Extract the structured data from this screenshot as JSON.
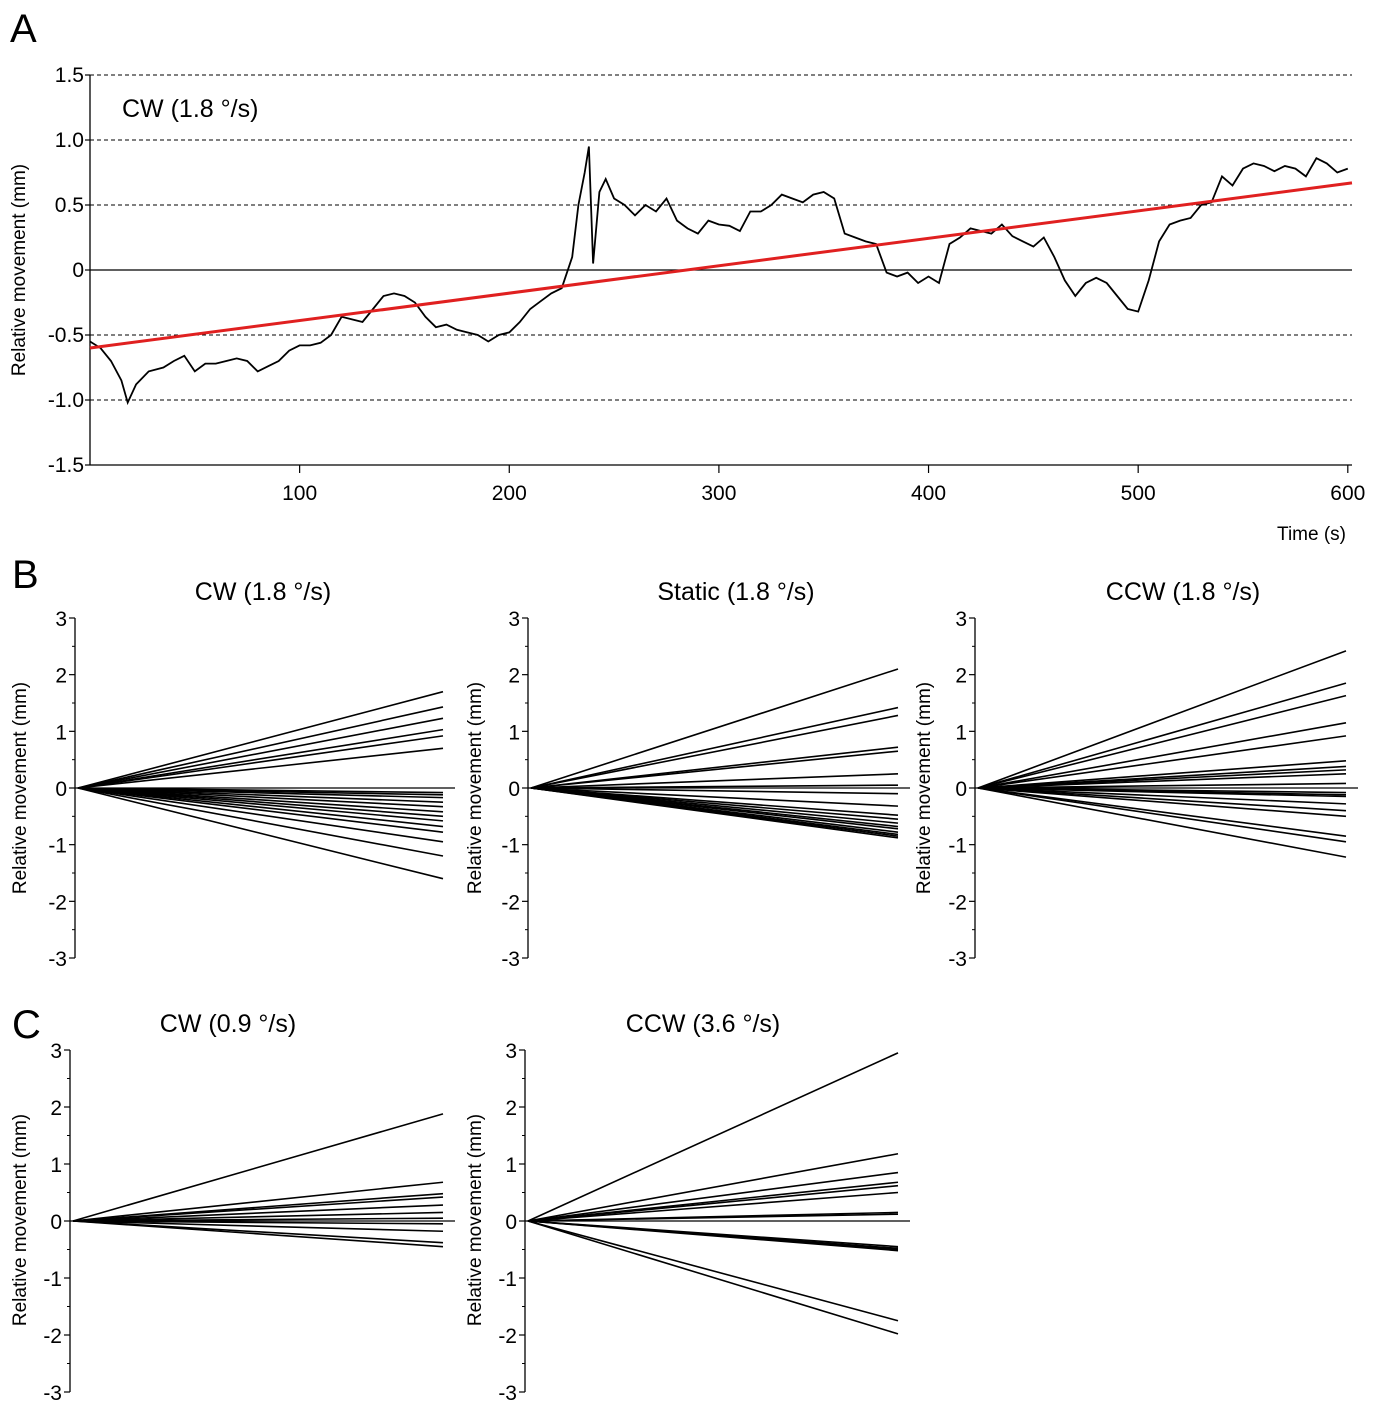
{
  "panels": {
    "A": "A",
    "B": "B",
    "C": "C"
  },
  "chart_data": [
    {
      "id": "A",
      "type": "line",
      "title": "CW (1.8 °/s)",
      "xlabel": "Time (s)",
      "ylabel": "Relative movement (mm)",
      "xlim": [
        0,
        602
      ],
      "ylim": [
        -1.5,
        1.5
      ],
      "xticks": [
        100,
        200,
        300,
        400,
        500,
        600
      ],
      "xtick_labels": [
        "100",
        "200",
        "300",
        "400",
        "500",
        "600"
      ],
      "yticks": [
        1.5,
        1.0,
        0.5,
        0,
        -0.5,
        -1.0,
        -1.5
      ],
      "ytick_labels": [
        "1.5",
        "1.0",
        "0.5",
        "0",
        "-0.5",
        "-1.0",
        "-1.5"
      ],
      "grid": "dashed horizontal at ±0.5, ±1.0, 1.5",
      "series": [
        {
          "color": "#000000",
          "x": [
            0,
            5,
            10,
            15,
            18,
            22,
            28,
            35,
            40,
            45,
            50,
            55,
            60,
            65,
            70,
            75,
            80,
            85,
            90,
            95,
            100,
            105,
            110,
            115,
            120,
            125,
            130,
            135,
            140,
            145,
            150,
            155,
            160,
            165,
            170,
            175,
            180,
            185,
            190,
            195,
            200,
            205,
            210,
            215,
            220,
            225,
            230,
            233,
            236,
            238,
            240,
            243,
            246,
            250,
            255,
            260,
            265,
            270,
            275,
            280,
            285,
            290,
            295,
            300,
            305,
            310,
            315,
            320,
            325,
            330,
            335,
            340,
            345,
            350,
            355,
            360,
            365,
            370,
            375,
            380,
            385,
            390,
            395,
            400,
            405,
            410,
            415,
            420,
            425,
            430,
            435,
            440,
            445,
            450,
            455,
            460,
            465,
            470,
            475,
            480,
            485,
            490,
            495,
            500,
            505,
            510,
            515,
            520,
            525,
            530,
            535,
            540,
            545,
            550,
            555,
            560,
            565,
            570,
            575,
            580,
            585,
            590,
            595,
            600
          ],
          "y": [
            -0.55,
            -0.6,
            -0.7,
            -0.85,
            -1.02,
            -0.88,
            -0.78,
            -0.75,
            -0.7,
            -0.66,
            -0.78,
            -0.72,
            -0.72,
            -0.7,
            -0.68,
            -0.7,
            -0.78,
            -0.74,
            -0.7,
            -0.62,
            -0.58,
            -0.58,
            -0.56,
            -0.5,
            -0.36,
            -0.38,
            -0.4,
            -0.3,
            -0.2,
            -0.18,
            -0.2,
            -0.25,
            -0.36,
            -0.44,
            -0.42,
            -0.46,
            -0.48,
            -0.5,
            -0.55,
            -0.5,
            -0.48,
            -0.4,
            -0.3,
            -0.24,
            -0.18,
            -0.14,
            0.1,
            0.5,
            0.75,
            0.95,
            0.05,
            0.6,
            0.7,
            0.55,
            0.5,
            0.42,
            0.5,
            0.45,
            0.55,
            0.38,
            0.32,
            0.28,
            0.38,
            0.35,
            0.34,
            0.3,
            0.45,
            0.45,
            0.5,
            0.58,
            0.55,
            0.52,
            0.58,
            0.6,
            0.55,
            0.28,
            0.25,
            0.22,
            0.2,
            -0.02,
            -0.05,
            -0.02,
            -0.1,
            -0.05,
            -0.1,
            0.2,
            0.25,
            0.32,
            0.3,
            0.28,
            0.35,
            0.26,
            0.22,
            0.18,
            0.25,
            0.1,
            -0.08,
            -0.2,
            -0.1,
            -0.06,
            -0.1,
            -0.2,
            -0.3,
            -0.32,
            -0.08,
            0.22,
            0.35,
            0.38,
            0.4,
            0.5,
            0.52,
            0.72,
            0.65,
            0.78,
            0.82,
            0.8,
            0.76,
            0.8,
            0.78,
            0.72,
            0.86,
            0.82,
            0.75,
            0.78
          ]
        },
        {
          "color": "#e02020",
          "x": [
            0,
            602
          ],
          "y": [
            -0.6,
            0.67
          ]
        }
      ]
    },
    {
      "id": "B1",
      "type": "line",
      "title": "CW (1.8 °/s)",
      "ylabel": "Relative movement (mm)",
      "ylim": [
        -3,
        3
      ],
      "yticks": [
        3,
        2,
        1,
        0,
        -1,
        -2,
        -3
      ],
      "ytick_labels": [
        "3",
        "2",
        "1",
        "0",
        "-1",
        "-2",
        "-3"
      ],
      "x": [
        0,
        1
      ],
      "endpoints": [
        1.7,
        1.43,
        1.23,
        1.03,
        0.92,
        0.7,
        -0.08,
        -0.12,
        -0.17,
        -0.25,
        -0.33,
        -0.42,
        -0.5,
        -0.58,
        -0.68,
        -0.78,
        -0.95,
        -1.2,
        -1.6
      ]
    },
    {
      "id": "B2",
      "type": "line",
      "title": "Static (1.8 °/s)",
      "ylabel": "Relative movement (mm)",
      "ylim": [
        -3,
        3
      ],
      "yticks": [
        3,
        2,
        1,
        0,
        -1,
        -2,
        -3
      ],
      "ytick_labels": [
        "3",
        "2",
        "1",
        "0",
        "-1",
        "-2",
        "-3"
      ],
      "x": [
        0,
        1
      ],
      "endpoints": [
        2.1,
        1.42,
        1.28,
        0.72,
        0.65,
        0.25,
        0.05,
        -0.1,
        -0.32,
        -0.48,
        -0.55,
        -0.62,
        -0.68,
        -0.72,
        -0.78,
        -0.82,
        -0.85,
        -0.88
      ]
    },
    {
      "id": "B3",
      "type": "line",
      "title": "CCW (1.8 °/s)",
      "ylabel": "Relative movement (mm)",
      "ylim": [
        -3,
        3
      ],
      "yticks": [
        3,
        2,
        1,
        0,
        -1,
        -2,
        -3
      ],
      "ytick_labels": [
        "3",
        "2",
        "1",
        "0",
        "-1",
        "-2",
        "-3"
      ],
      "x": [
        0,
        1
      ],
      "endpoints": [
        2.42,
        1.85,
        1.63,
        1.15,
        0.92,
        0.48,
        0.38,
        0.32,
        0.25,
        0.08,
        -0.08,
        -0.12,
        -0.15,
        -0.28,
        -0.4,
        -0.5,
        -0.85,
        -0.95,
        -1.22
      ]
    },
    {
      "id": "C1",
      "type": "line",
      "title": "CW (0.9 °/s)",
      "ylabel": "Relative movement (mm)",
      "ylim": [
        -3,
        3
      ],
      "yticks": [
        3,
        2,
        1,
        0,
        -1,
        -2,
        -3
      ],
      "ytick_labels": [
        "3",
        "2",
        "1",
        "0",
        "-1",
        "-2",
        "-3"
      ],
      "x": [
        0,
        1
      ],
      "endpoints": [
        1.88,
        0.68,
        0.48,
        0.42,
        0.28,
        0.15,
        0.05,
        -0.05,
        -0.18,
        -0.38,
        -0.45
      ]
    },
    {
      "id": "C2",
      "type": "line",
      "title": "CCW (3.6 °/s)",
      "ylabel": "Relative movement (mm)",
      "ylim": [
        -3,
        3
      ],
      "yticks": [
        3,
        2,
        1,
        0,
        -1,
        -2,
        -3
      ],
      "ytick_labels": [
        "3",
        "2",
        "1",
        "0",
        "-1",
        "-2",
        "-3"
      ],
      "x": [
        0,
        1
      ],
      "endpoints": [
        2.95,
        1.18,
        0.85,
        0.68,
        0.62,
        0.5,
        0.15,
        0.12,
        -0.45,
        -0.48,
        -0.5,
        -0.52,
        -1.75,
        -1.98
      ]
    }
  ]
}
